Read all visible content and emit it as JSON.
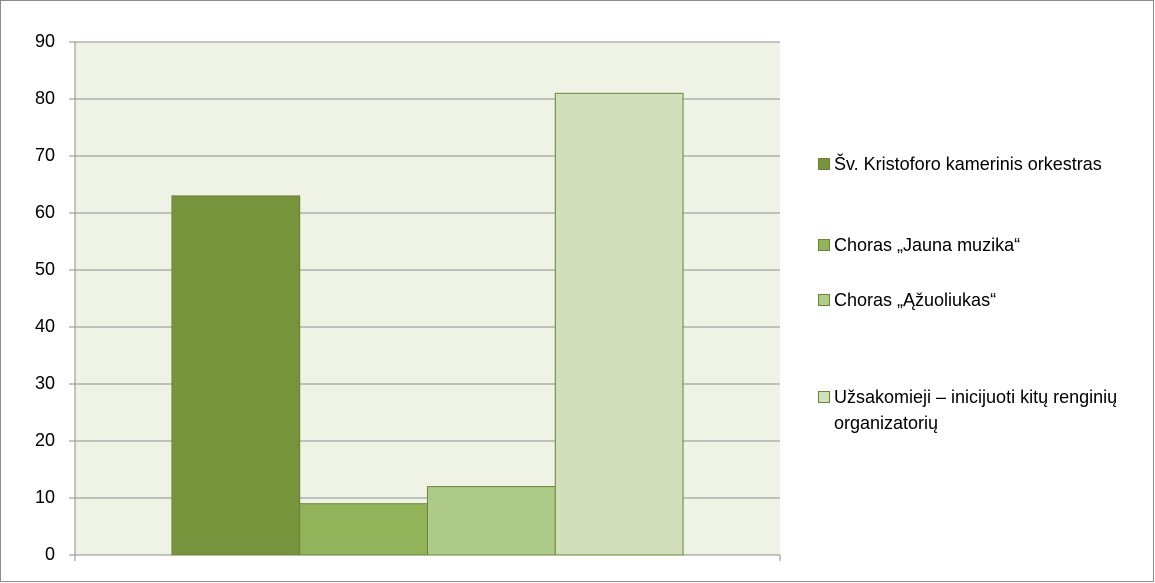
{
  "chart_data": {
    "type": "bar",
    "categories": [
      null
    ],
    "series": [
      {
        "name": "Šv. Kristoforo kamerinis orkestras",
        "color": "#77933c",
        "values": [
          63
        ]
      },
      {
        "name": "Choras „Jauna muzika“",
        "color": "#92b35a",
        "values": [
          9
        ]
      },
      {
        "name": "Choras „Ąžuoliukas“",
        "color": "#afcb89",
        "values": [
          12
        ]
      },
      {
        "name": "Užsakomieji – inicijuoti kitų renginių organizatorių",
        "color": "#d1e0bb",
        "values": [
          81
        ]
      }
    ],
    "ylim": [
      0,
      90
    ],
    "yticks": [
      0,
      10,
      20,
      30,
      40,
      50,
      60,
      70,
      80,
      90
    ],
    "grid": true,
    "legend": "right"
  }
}
